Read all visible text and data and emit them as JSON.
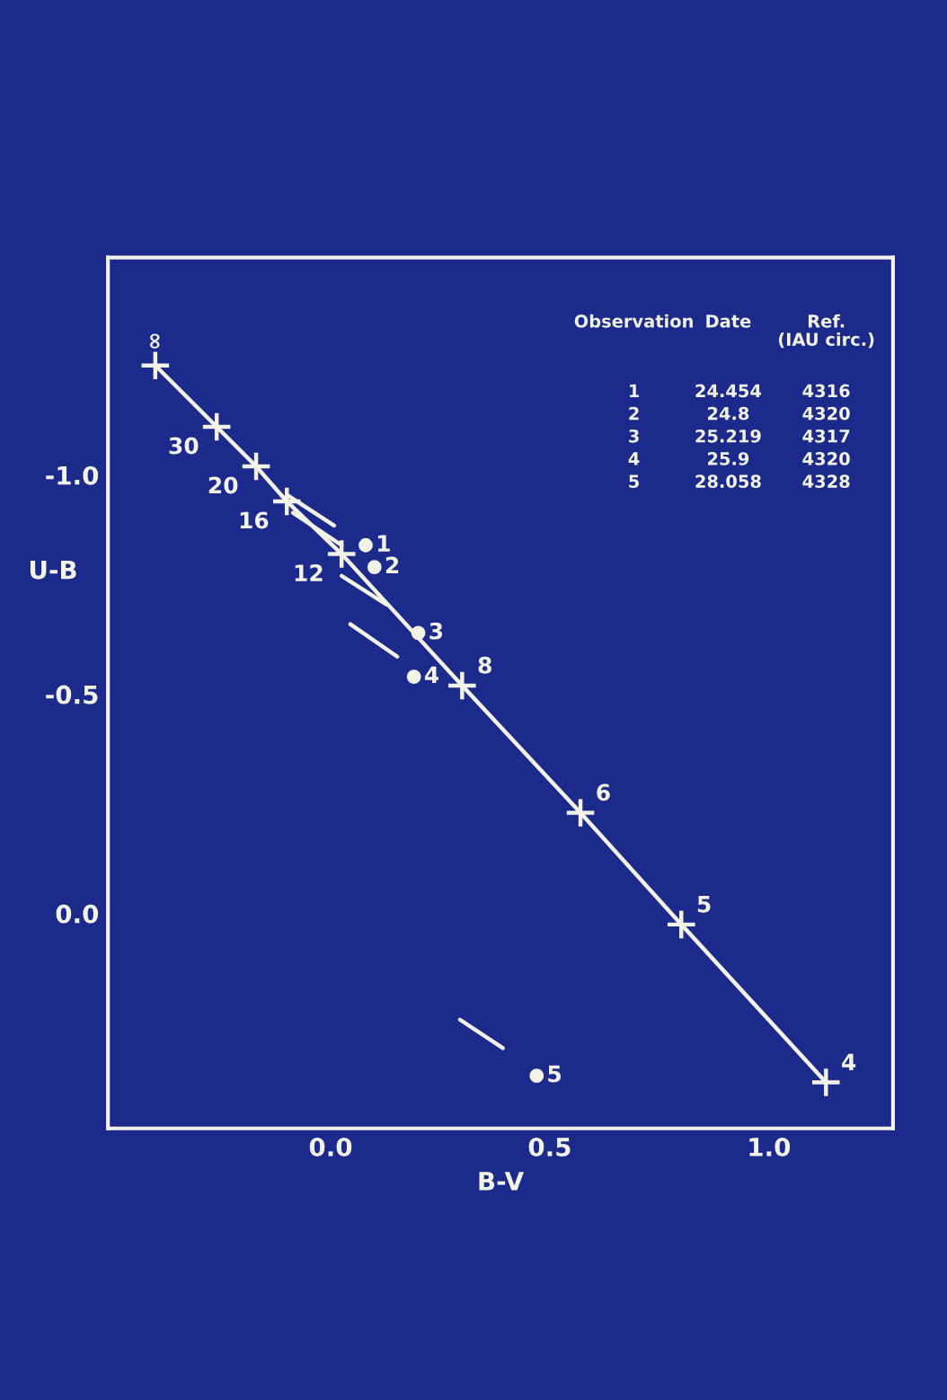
{
  "chart_data": {
    "type": "line",
    "xlabel": "B-V",
    "ylabel": "U-B",
    "xlim": [
      -0.508,
      1.283
    ],
    "ylim": [
      0.49,
      -1.496
    ],
    "xticks": [
      {
        "value": 0,
        "label": "0.0"
      },
      {
        "value": 0.5,
        "label": "0.5"
      },
      {
        "value": 1.0,
        "label": "1.0"
      }
    ],
    "yticks": [
      {
        "value": -1.0,
        "label": "-1.0"
      },
      {
        "value": -0.5,
        "label": "-0.5"
      },
      {
        "value": 0,
        "label": "0.0"
      }
    ],
    "grid": false,
    "legend": false,
    "series": [
      {
        "marker": "cross",
        "color": "#f2f2e6",
        "x": [
          -0.4,
          -0.26,
          -0.17,
          -0.1,
          0.025,
          0.3,
          0.57,
          0.8,
          1.13
        ],
        "values": [
          -1.25,
          -1.11,
          -1.02,
          -0.94,
          -0.82,
          -0.52,
          -0.23,
          0.025,
          0.385
        ]
      },
      {
        "type": "scatter",
        "marker": "circle",
        "color": "#f2f2e6",
        "x": [
          0.08,
          0.1,
          0.2,
          0.19,
          0.47
        ],
        "values": [
          -0.84,
          -0.79,
          -0.64,
          -0.54,
          0.37
        ]
      },
      {
        "color": "#f2f2e6",
        "x": [
          -0.1,
          0.008
        ],
        "values": [
          -0.955,
          -0.885
        ]
      },
      {
        "color": "#f2f2e6",
        "x": [
          -0.086,
          0.025
        ],
        "values": [
          -0.914,
          -0.84
        ]
      },
      {
        "color": "#f2f2e6",
        "x": [
          0.025,
          0.127
        ],
        "values": [
          -0.77,
          -0.705
        ]
      },
      {
        "color": "#f2f2e6",
        "x": [
          0.045,
          0.152
        ],
        "values": [
          -0.66,
          -0.586
        ]
      },
      {
        "color": "#f2f2e6",
        "x": [
          0.295,
          0.393
        ],
        "values": [
          0.242,
          0.307
        ]
      }
    ],
    "annotations": [
      {
        "text": "∞",
        "x": -0.4,
        "y": -1.25
      },
      {
        "text": "30",
        "x": -0.26,
        "y": -1.11
      },
      {
        "text": "20",
        "x": -0.17,
        "y": -1.02
      },
      {
        "text": "16",
        "x": -0.1,
        "y": -0.94
      },
      {
        "text": "12",
        "x": 0.025,
        "y": -0.82
      },
      {
        "text": "8",
        "x": 0.3,
        "y": -0.52
      },
      {
        "text": "6",
        "x": 0.57,
        "y": -0.23
      },
      {
        "text": "5",
        "x": 0.8,
        "y": 0.025
      },
      {
        "text": "4",
        "x": 1.13,
        "y": 0.385
      },
      {
        "text": "1",
        "x": 0.08,
        "y": -0.84
      },
      {
        "text": "2",
        "x": 0.1,
        "y": -0.79
      },
      {
        "text": "3",
        "x": 0.2,
        "y": -0.64
      },
      {
        "text": "4",
        "x": 0.19,
        "y": -0.54
      },
      {
        "text": "5",
        "x": 0.47,
        "y": 0.37
      },
      "Observation",
      "Date",
      "Ref.\n(IAU circ.)",
      "1",
      "24.454",
      "4316",
      "2",
      "24.8",
      "4320",
      "3",
      "25.219",
      "4317",
      "4",
      "25.9",
      "4320",
      "5",
      "28.058",
      "4328"
    ]
  }
}
